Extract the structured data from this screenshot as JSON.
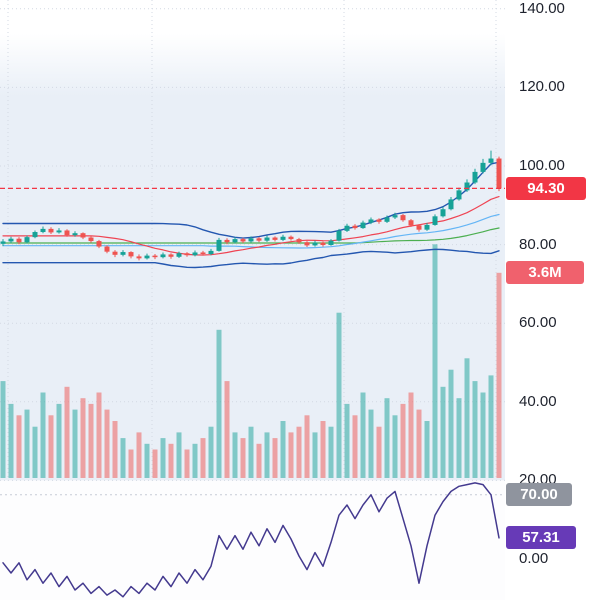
{
  "badges": {
    "last_price": "94.30",
    "volume": "3.6M",
    "rsi_level": "70.00",
    "rsi_value": "57.31"
  },
  "chart_data": {
    "type": "candlestick",
    "title": "Stock price chart with Bollinger Bands, moving averages, volume and RSI panes",
    "panes": [
      "price",
      "volume",
      "rsi"
    ],
    "y_axis": {
      "min": 0,
      "max": 143,
      "ticks": [
        {
          "value": 140,
          "label": "140.00"
        },
        {
          "value": 120,
          "label": "120.00"
        },
        {
          "value": 100,
          "label": "100.00"
        },
        {
          "value": 80,
          "label": "80.00"
        },
        {
          "value": 60,
          "label": "60.00"
        },
        {
          "value": 40,
          "label": "40.00"
        },
        {
          "value": 20,
          "label": "20.00"
        },
        {
          "value": 0,
          "label": "0.00"
        }
      ]
    },
    "last_price": 94.3,
    "last_volume_label": "3.6M",
    "rsi_level": 70,
    "rsi_last": 57.31,
    "candles": [
      [
        80.2,
        81.4,
        79.6,
        80.8
      ],
      [
        80.8,
        82.0,
        80.4,
        81.5
      ],
      [
        81.5,
        81.9,
        80.1,
        80.6
      ],
      [
        80.6,
        82.3,
        80.3,
        81.9
      ],
      [
        81.9,
        83.6,
        81.6,
        83.2
      ],
      [
        83.2,
        84.6,
        82.9,
        84.0
      ],
      [
        84.0,
        84.4,
        82.7,
        83.1
      ],
      [
        83.1,
        84.2,
        82.8,
        83.6
      ],
      [
        83.6,
        83.9,
        82.0,
        82.4
      ],
      [
        82.4,
        83.4,
        82.0,
        82.9
      ],
      [
        82.9,
        83.1,
        81.4,
        81.8
      ],
      [
        81.8,
        82.2,
        80.5,
        80.9
      ],
      [
        80.9,
        81.2,
        79.1,
        79.5
      ],
      [
        79.5,
        79.8,
        77.8,
        78.2
      ],
      [
        78.2,
        78.6,
        76.8,
        77.4
      ],
      [
        77.4,
        78.6,
        77.0,
        78.1
      ],
      [
        78.1,
        78.3,
        76.5,
        77.0
      ],
      [
        77.0,
        77.5,
        76.0,
        76.5
      ],
      [
        76.5,
        77.7,
        76.2,
        77.2
      ],
      [
        77.2,
        77.6,
        76.3,
        76.8
      ],
      [
        76.8,
        78.0,
        76.5,
        77.5
      ],
      [
        77.5,
        77.8,
        76.4,
        76.9
      ],
      [
        76.9,
        78.2,
        76.6,
        77.8
      ],
      [
        77.8,
        78.1,
        76.9,
        77.3
      ],
      [
        77.3,
        78.5,
        77.0,
        78.0
      ],
      [
        78.0,
        78.4,
        77.2,
        77.6
      ],
      [
        77.6,
        78.9,
        77.3,
        78.4
      ],
      [
        78.4,
        81.7,
        78.2,
        81.2
      ],
      [
        81.2,
        81.6,
        80.1,
        80.6
      ],
      [
        80.6,
        81.9,
        80.3,
        81.4
      ],
      [
        81.4,
        81.7,
        80.4,
        80.8
      ],
      [
        80.8,
        82.1,
        80.5,
        81.6
      ],
      [
        81.6,
        81.9,
        80.6,
        81.0
      ],
      [
        81.0,
        82.3,
        80.7,
        81.8
      ],
      [
        81.8,
        82.1,
        80.8,
        81.2
      ],
      [
        81.2,
        82.5,
        80.9,
        82.0
      ],
      [
        82.0,
        82.3,
        81.0,
        81.4
      ],
      [
        81.4,
        81.7,
        80.2,
        80.6
      ],
      [
        80.6,
        80.9,
        79.4,
        79.8
      ],
      [
        79.8,
        81.0,
        79.5,
        80.5
      ],
      [
        80.5,
        80.8,
        79.5,
        79.9
      ],
      [
        79.9,
        81.4,
        79.7,
        81.0
      ],
      [
        81.0,
        84.0,
        80.8,
        83.5
      ],
      [
        83.5,
        85.3,
        83.2,
        84.8
      ],
      [
        84.8,
        85.2,
        83.8,
        84.2
      ],
      [
        84.2,
        86.1,
        84.0,
        85.6
      ],
      [
        85.6,
        86.9,
        85.2,
        86.4
      ],
      [
        86.4,
        86.7,
        85.3,
        85.8
      ],
      [
        85.8,
        87.4,
        85.5,
        86.9
      ],
      [
        86.9,
        88.1,
        86.5,
        87.5
      ],
      [
        87.5,
        87.8,
        85.8,
        86.2
      ],
      [
        86.2,
        86.5,
        84.5,
        84.9
      ],
      [
        84.9,
        85.2,
        83.3,
        83.8
      ],
      [
        83.8,
        85.5,
        83.5,
        85.0
      ],
      [
        85.0,
        87.7,
        84.8,
        87.2
      ],
      [
        87.2,
        89.6,
        86.9,
        89.0
      ],
      [
        89.0,
        92.1,
        88.7,
        91.5
      ],
      [
        91.5,
        94.5,
        91.2,
        93.8
      ],
      [
        93.8,
        96.6,
        93.4,
        95.8
      ],
      [
        95.8,
        99.3,
        95.4,
        98.5
      ],
      [
        98.5,
        101.8,
        98.1,
        100.8
      ],
      [
        100.8,
        103.9,
        100.2,
        101.9
      ],
      [
        101.9,
        102.4,
        93.6,
        94.3
      ]
    ],
    "volumes_m": [
      1.7,
      1.3,
      1.1,
      1.2,
      0.9,
      1.5,
      1.1,
      1.3,
      1.6,
      1.2,
      1.4,
      1.3,
      1.5,
      1.2,
      1.0,
      0.7,
      0.5,
      0.8,
      0.6,
      0.5,
      0.7,
      0.6,
      0.8,
      0.5,
      0.6,
      0.7,
      0.9,
      2.6,
      1.7,
      0.8,
      0.7,
      0.9,
      0.6,
      0.8,
      0.7,
      1.0,
      0.8,
      0.9,
      1.1,
      0.8,
      1.0,
      0.9,
      2.9,
      1.3,
      1.1,
      1.5,
      1.2,
      0.9,
      1.4,
      1.1,
      1.3,
      1.5,
      1.2,
      1.0,
      4.1,
      1.6,
      1.9,
      1.4,
      2.1,
      1.7,
      1.5,
      1.8,
      3.6
    ],
    "rsi": [
      50,
      47,
      50,
      45,
      48,
      44,
      47,
      43,
      46,
      42,
      44,
      41,
      43,
      40.5,
      42,
      40,
      43,
      41,
      44,
      42,
      46,
      43,
      47,
      44,
      48,
      45,
      49,
      58,
      54,
      58,
      54,
      59,
      55,
      60,
      56,
      61,
      57,
      52,
      48,
      53,
      49,
      56,
      64,
      67,
      63,
      67,
      70,
      65,
      69,
      71,
      63,
      55,
      44,
      55,
      64,
      68,
      71,
      72.5,
      73,
      73.5,
      73,
      70,
      57.31
    ],
    "indicators": {
      "bollinger": {
        "period": 20,
        "mult": 2
      },
      "ma": [
        {
          "period": 45,
          "color": "#4caf50"
        },
        {
          "period": 26,
          "color": "#64b5f6"
        },
        {
          "period": 12,
          "color": "#ef4352"
        }
      ]
    },
    "colors": {
      "candle_up": "#17a297",
      "candle_down": "#ef5350",
      "band": "#2457b0",
      "price_line": "#f23645",
      "rsi_line": "#443a8f",
      "badge_price": "#f23645",
      "badge_volume": "#f0616d",
      "badge_gray": "#8f949e",
      "badge_purple": "#673ab7",
      "chart_bg": "#e9eff7",
      "axis_text": "#1e222d"
    }
  }
}
